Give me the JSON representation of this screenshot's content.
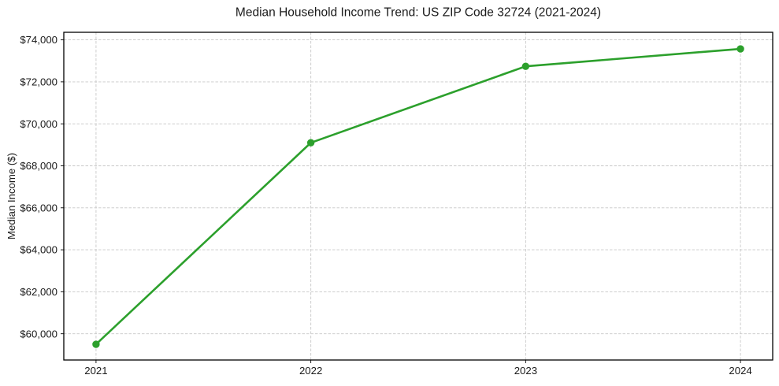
{
  "figure": {
    "background": "#ffffff"
  },
  "chart_data": {
    "type": "line",
    "title": "Median Household Income Trend: US ZIP Code 32724 (2021-2024)",
    "xlabel": "",
    "ylabel": "Median Income ($)",
    "x": [
      2021,
      2022,
      2023,
      2024
    ],
    "x_tick_labels": [
      "2021",
      "2022",
      "2023",
      "2024"
    ],
    "series": [
      {
        "name": "Median household income",
        "values": [
          59500,
          69100,
          72740,
          73570
        ]
      }
    ],
    "y_ticks": [
      60000,
      62000,
      64000,
      66000,
      68000,
      70000,
      72000,
      74000
    ],
    "y_tick_labels": [
      "$60,000",
      "$62,000",
      "$64,000",
      "$66,000",
      "$68,000",
      "$70,000",
      "$72,000",
      "$74,000"
    ],
    "xlim": [
      2020.85,
      2024.15
    ],
    "ylim": [
      58750,
      74360
    ],
    "grid": true,
    "grid_style": "dashed",
    "legend": "none",
    "marker": "circle",
    "colors": {
      "line": "#2ca02c",
      "marker": "#2ca02c",
      "grid": "#c8c8c8",
      "spine": "#000000",
      "text": "#1a1a1a",
      "background": "#ffffff"
    }
  }
}
